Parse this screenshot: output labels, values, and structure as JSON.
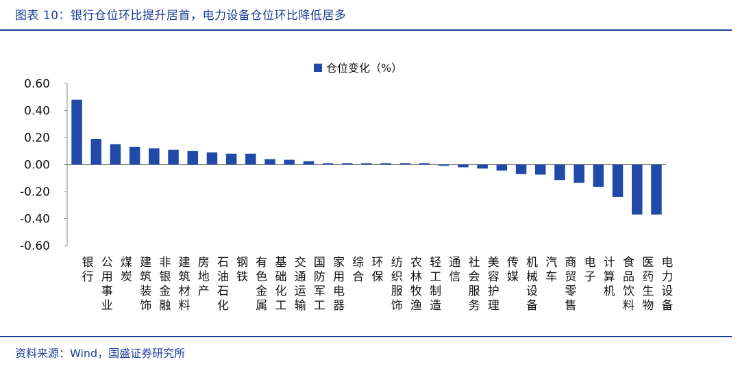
{
  "header": {
    "title": "图表 10：银行仓位环比提升居首，电力设备仓位环比降低居多"
  },
  "footer": {
    "source": "资料来源：Wind，国盛证券研究所"
  },
  "colors": {
    "accent": "#1c3f94",
    "bar": "#1f4aa8"
  },
  "chart_data": {
    "type": "bar",
    "legend": "仓位变化（%）",
    "legend_position": "top-center",
    "ylim": [
      -0.6,
      0.6
    ],
    "yticks": [
      "0.60",
      "0.40",
      "0.20",
      "0.00",
      "-0.20",
      "-0.40",
      "-0.60"
    ],
    "grid": false,
    "categories": [
      "银行",
      "公用事业",
      "煤炭",
      "建筑装饰",
      "非银金融",
      "建筑材料",
      "房地产",
      "石油石化",
      "钢铁",
      "有色金属",
      "基础化工",
      "交通运输",
      "国防军工",
      "家用电器",
      "综合",
      "环保",
      "纺织服饰",
      "农林牧渔",
      "轻工制造",
      "通信",
      "社会服务",
      "美容护理",
      "传媒",
      "机械设备",
      "汽车",
      "商贸零售",
      "电子",
      "计算机",
      "食品饮料",
      "医药生物",
      "电力设备"
    ],
    "values": [
      0.48,
      0.19,
      0.15,
      0.13,
      0.12,
      0.11,
      0.1,
      0.09,
      0.08,
      0.08,
      0.04,
      0.035,
      0.025,
      0.01,
      0.01,
      0.01,
      0.01,
      0.01,
      0.01,
      -0.01,
      -0.02,
      -0.03,
      -0.045,
      -0.07,
      -0.075,
      -0.115,
      -0.135,
      -0.165,
      -0.24,
      -0.37,
      -0.37
    ]
  }
}
